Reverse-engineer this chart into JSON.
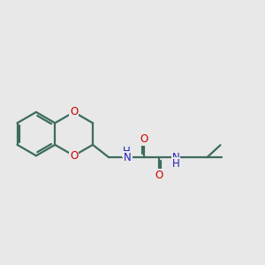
{
  "bg_color": "#e8e8e8",
  "bond_color": "#3d6b5e",
  "o_color": "#cc0000",
  "n_color": "#2222bb",
  "lw": 1.6,
  "font_size": 8.5,
  "figsize": [
    3.0,
    3.0
  ],
  "dpi": 100,
  "xlim": [
    0.3,
    9.7
  ],
  "ylim": [
    2.2,
    6.2
  ]
}
